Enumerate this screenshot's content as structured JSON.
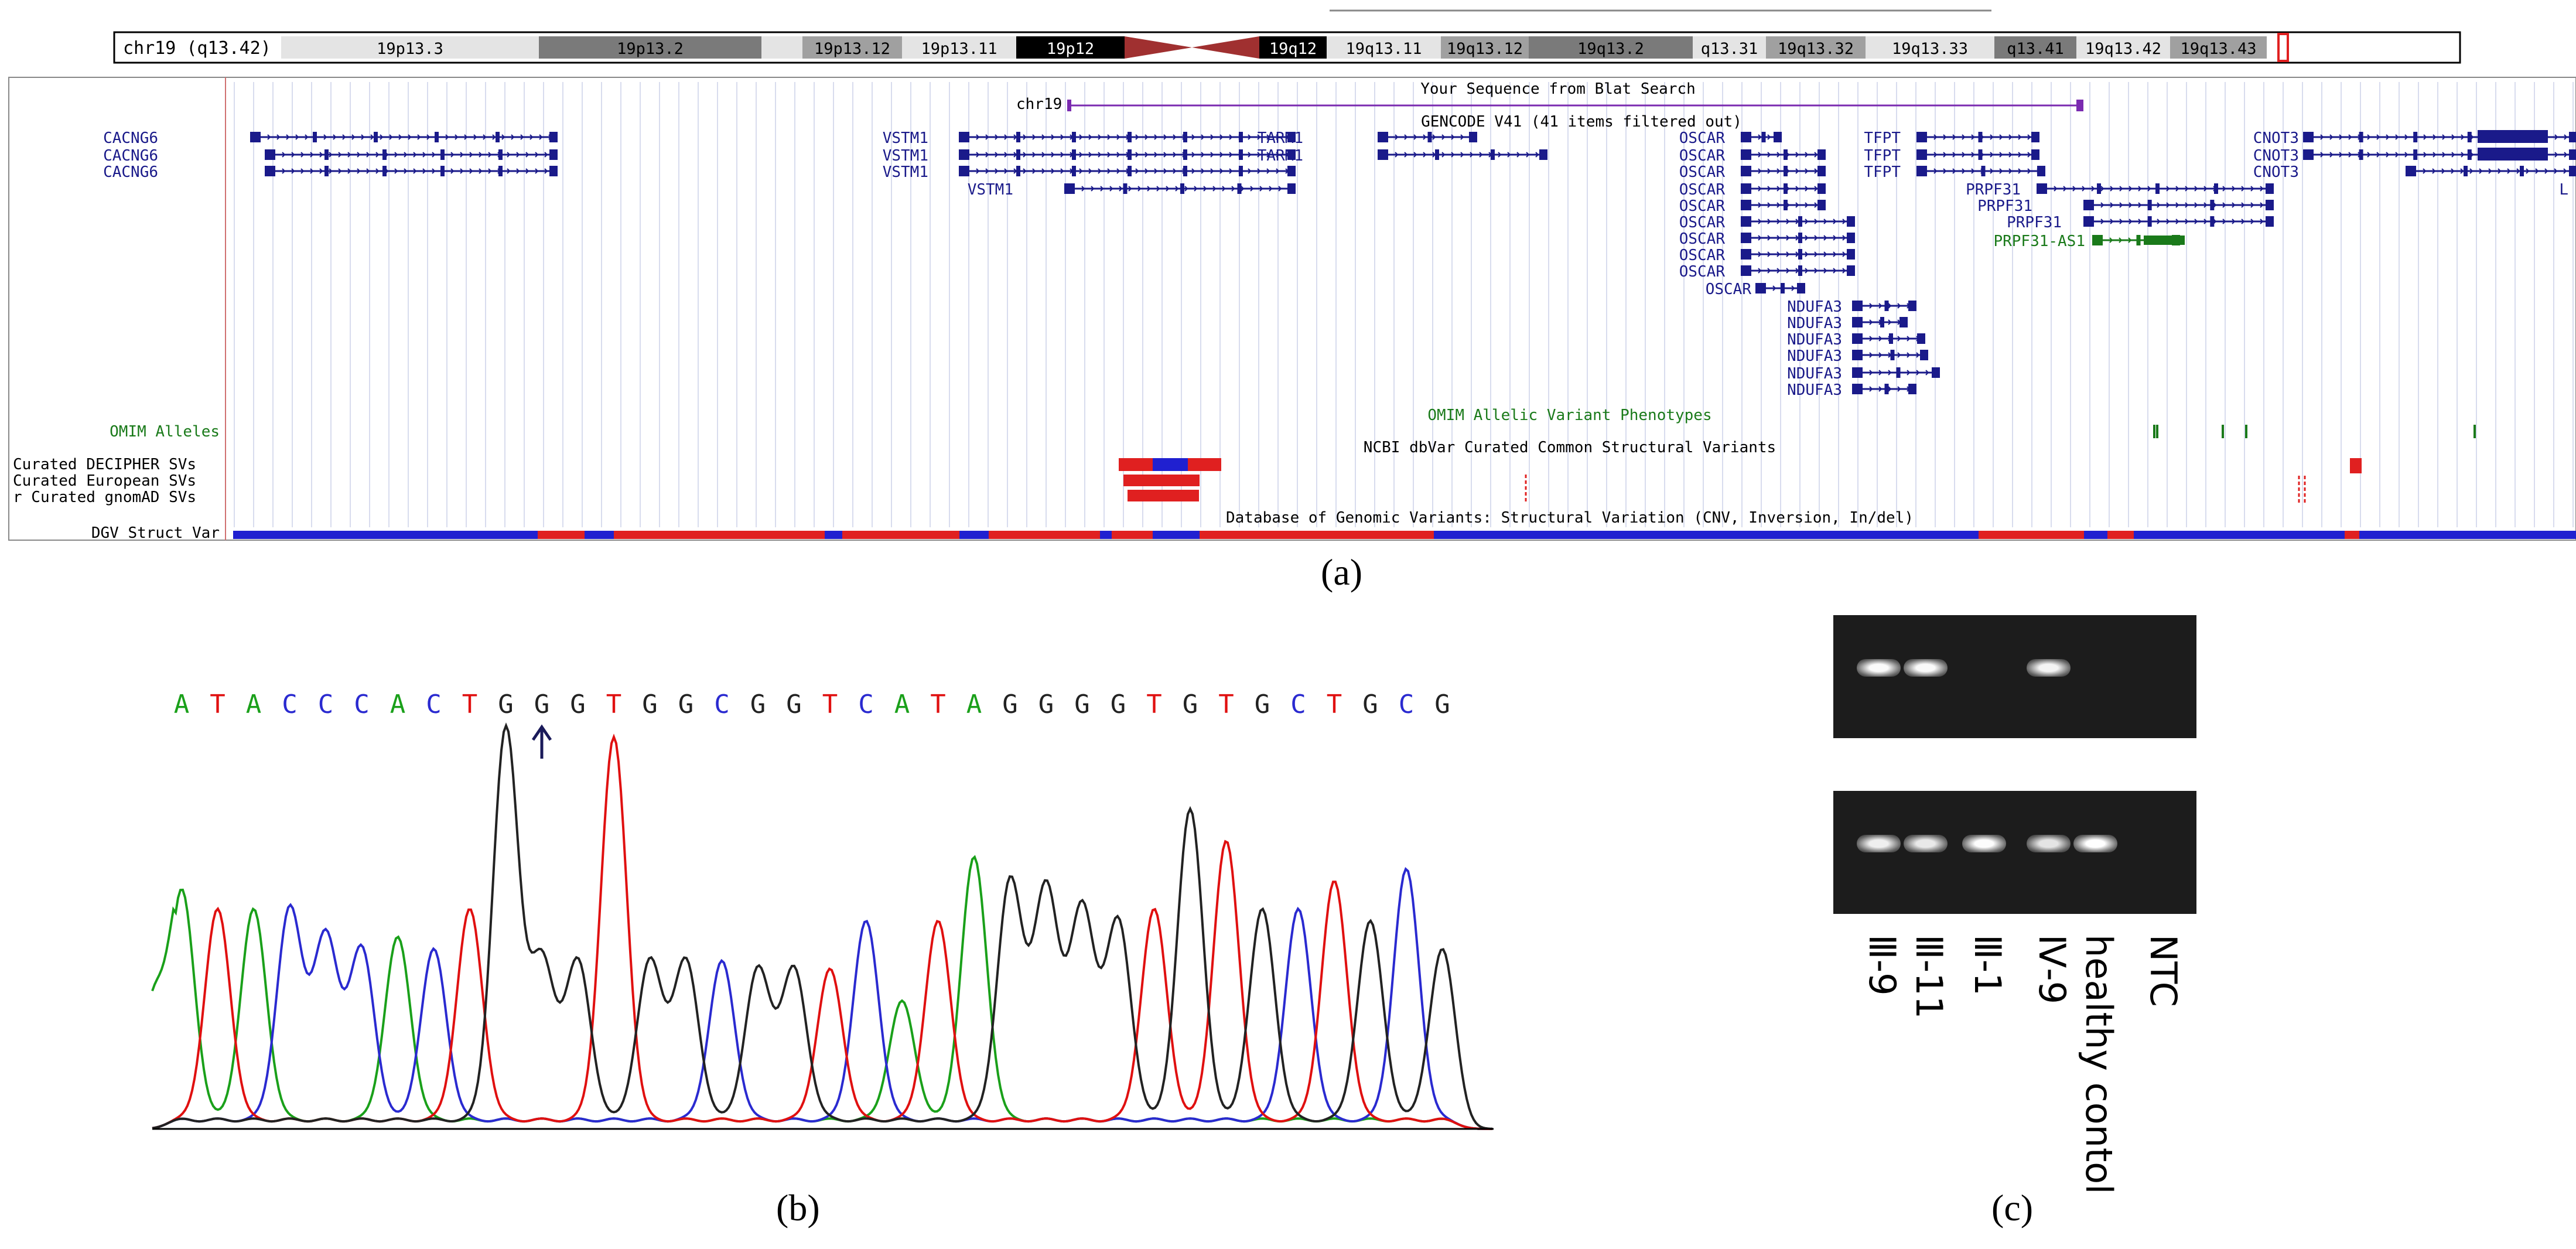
{
  "panel_a": {
    "caption": "(a)",
    "ideogram": {
      "chrom_label": "chr19 (q13.42)",
      "bands": [
        {
          "label": "19p13.3",
          "shade": "light"
        },
        {
          "label": "19p13.2",
          "shade": "dark"
        },
        {
          "label": "",
          "shade": "light"
        },
        {
          "label": "19p13.12",
          "shade": "mid"
        },
        {
          "label": "19p13.11",
          "shade": "light"
        },
        {
          "label": "19p12",
          "shade": "black"
        },
        {
          "label": "",
          "shade": "centro"
        },
        {
          "label": "19q12",
          "shade": "black"
        },
        {
          "label": "19q13.11",
          "shade": "light"
        },
        {
          "label": "19q13.12",
          "shade": "mid"
        },
        {
          "label": "19q13.2",
          "shade": "dark"
        },
        {
          "label": "q13.31",
          "shade": "light"
        },
        {
          "label": "19q13.32",
          "shade": "mid"
        },
        {
          "label": "19q13.33",
          "shade": "light"
        },
        {
          "label": "q13.41",
          "shade": "dark"
        },
        {
          "label": "19q13.42",
          "shade": "light"
        },
        {
          "label": "19q13.43",
          "shade": "mid"
        }
      ]
    },
    "tracks": {
      "blat_title": "Your Sequence from Blat Search",
      "blat_chrom": "chr19",
      "gencode_title": "GENCODE V41 (41 items filtered out)",
      "omim_title": "OMIM Allelic Variant Phenotypes",
      "dbvar_title": "NCBI dbVar Curated Common Structural Variants",
      "dgv_title": "Database of Genomic Variants: Structural Variation (CNV, Inversion, In/del)"
    },
    "left_labels": [
      "OMIM Alleles",
      "Curated DECIPHER SVs",
      "Curated European SVs",
      "r Curated gnomAD SVs",
      "DGV Struct Var"
    ],
    "genes": [
      {
        "name": "CACNG6"
      },
      {
        "name": "CACNG6"
      },
      {
        "name": "CACNG6"
      },
      {
        "name": "VSTM1"
      },
      {
        "name": "VSTM1"
      },
      {
        "name": "VSTM1"
      },
      {
        "name": "VSTM1"
      },
      {
        "name": "TARM1"
      },
      {
        "name": "TARM1"
      },
      {
        "name": "OSCAR"
      },
      {
        "name": "OSCAR"
      },
      {
        "name": "OSCAR"
      },
      {
        "name": "OSCAR"
      },
      {
        "name": "OSCAR"
      },
      {
        "name": "OSCAR"
      },
      {
        "name": "OSCAR"
      },
      {
        "name": "OSCAR"
      },
      {
        "name": "OSCAR"
      },
      {
        "name": "OSCAR"
      },
      {
        "name": "NDUFA3"
      },
      {
        "name": "NDUFA3"
      },
      {
        "name": "NDUFA3"
      },
      {
        "name": "NDUFA3"
      },
      {
        "name": "NDUFA3"
      },
      {
        "name": "NDUFA3"
      },
      {
        "name": "TFPT"
      },
      {
        "name": "TFPT"
      },
      {
        "name": "TFPT"
      },
      {
        "name": "PRPF31"
      },
      {
        "name": "PRPF31"
      },
      {
        "name": "PRPF31"
      },
      {
        "name": "PRPF31-AS1"
      },
      {
        "name": "CNOT3"
      },
      {
        "name": "CNOT3"
      },
      {
        "name": "CNOT3"
      },
      {
        "name": "L"
      }
    ]
  },
  "panel_b": {
    "caption": "(b)",
    "sequence": [
      "A",
      "T",
      "A",
      "C",
      "C",
      "C",
      "A",
      "C",
      "T",
      "G",
      "G",
      "G",
      "T",
      "G",
      "G",
      "C",
      "G",
      "G",
      "T",
      "C",
      "A",
      "T",
      "A",
      "G",
      "G",
      "G",
      "G",
      "T",
      "G",
      "T",
      "G",
      "C",
      "T",
      "G",
      "C",
      "G"
    ],
    "arrow_index": 10,
    "colors": {
      "A": "#1aa01a",
      "C": "#2a2ad0",
      "G": "#222222",
      "T": "#e01010"
    }
  },
  "panel_c": {
    "caption": "(c)",
    "lanes": [
      "Ⅲ-9",
      "Ⅲ-11",
      "Ⅲ-1",
      "Ⅳ-9",
      "healthy contol",
      "NTC"
    ],
    "top_gel_bands": [
      0.9,
      0.9,
      0.0,
      0.8,
      0.0,
      0.0
    ],
    "bottom_gel_bands": [
      0.7,
      0.6,
      0.95,
      0.5,
      1.0,
      0.0
    ]
  }
}
